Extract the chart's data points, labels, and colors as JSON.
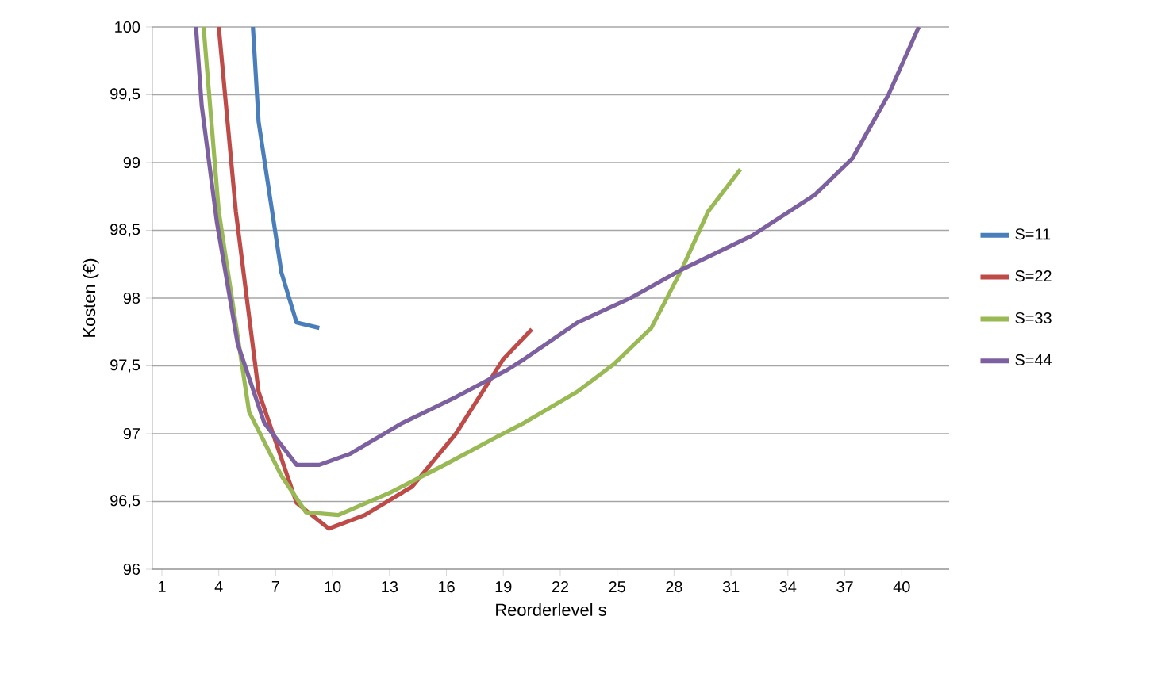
{
  "chart_data": {
    "type": "line",
    "xlabel": "Reorderlevel  s",
    "ylabel": "Kosten (€)",
    "xlim": [
      0.5,
      42.5
    ],
    "xticks": [
      1,
      4,
      7,
      10,
      13,
      16,
      19,
      22,
      25,
      28,
      31,
      34,
      37,
      40
    ],
    "ylim": [
      96,
      100
    ],
    "yticks": [
      96,
      {
        "value": 96.5,
        "label": "96,5"
      },
      97,
      {
        "value": 97.5,
        "label": "97,5"
      },
      98,
      {
        "value": 98.5,
        "label": "98,5"
      },
      99,
      {
        "value": 99.5,
        "label": "99,5"
      },
      100
    ],
    "grid": "y",
    "legend": "right",
    "line_style": "solid",
    "marker": "none",
    "series": [
      {
        "name": "S=11",
        "color": "#4a7ebb",
        "x": [
          5.8,
          6.1,
          7.3,
          8.1,
          9.3
        ],
        "values": [
          100,
          99.3,
          98.19,
          97.82,
          97.78
        ]
      },
      {
        "name": "S=22",
        "color": "#be4b48",
        "x": [
          4.0,
          4.9,
          6.1,
          8.1,
          9.8,
          11.7,
          14.2,
          16.5,
          19.0,
          20.5
        ],
        "values": [
          100,
          98.64,
          97.31,
          96.49,
          96.3,
          96.4,
          96.61,
          97.0,
          97.55,
          97.77
        ]
      },
      {
        "name": "S=33",
        "color": "#98b954",
        "x": [
          3.2,
          4.0,
          5.6,
          7.3,
          8.6,
          10.3,
          13.1,
          15.9,
          18.7,
          20.1,
          22.9,
          24.8,
          26.8,
          28.4,
          29.8,
          31.5
        ],
        "values": [
          100,
          98.64,
          97.16,
          96.69,
          96.42,
          96.4,
          96.57,
          96.77,
          96.98,
          97.08,
          97.31,
          97.51,
          97.78,
          98.21,
          98.64,
          98.95
        ]
      },
      {
        "name": "S=44",
        "color": "#7d60a0",
        "x": [
          2.8,
          3.1,
          3.9,
          5.0,
          6.4,
          8.1,
          9.3,
          10.9,
          13.7,
          16.5,
          19.2,
          20.1,
          22.9,
          25.7,
          28.4,
          32.1,
          35.4,
          37.4,
          39.3,
          40.9
        ],
        "values": [
          100,
          99.42,
          98.56,
          97.66,
          97.08,
          96.77,
          96.77,
          96.85,
          97.08,
          97.27,
          97.47,
          97.55,
          97.82,
          98.0,
          98.21,
          98.46,
          98.76,
          99.03,
          99.5,
          100
        ]
      }
    ]
  }
}
